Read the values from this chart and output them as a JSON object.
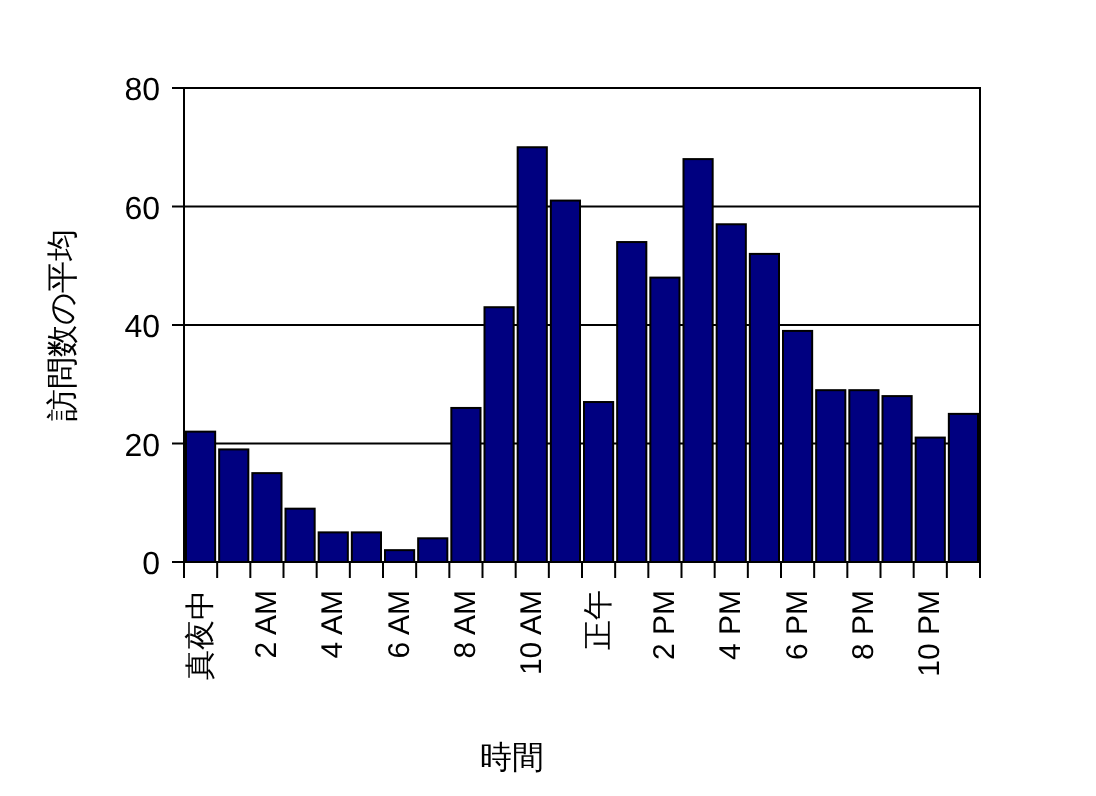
{
  "chart_data": {
    "type": "bar",
    "xlabel": "時間",
    "ylabel": "訪問数の平均",
    "categories": [
      "真夜中",
      null,
      "2 AM",
      null,
      "4 AM",
      null,
      "6 AM",
      null,
      "8 AM",
      null,
      "10 AM",
      null,
      "正午",
      null,
      "2 PM",
      null,
      "4 PM",
      null,
      "6 PM",
      null,
      "8 PM",
      null,
      "10 PM",
      null
    ],
    "values": [
      22,
      19,
      15,
      9,
      5,
      5,
      2,
      4,
      26,
      43,
      70,
      61,
      27,
      54,
      48,
      68,
      57,
      52,
      39,
      29,
      29,
      28,
      21,
      25
    ],
    "color": "#000080",
    "ylim": [
      0,
      80
    ],
    "yticks": [
      0,
      20,
      40,
      60,
      80
    ],
    "grid": "y"
  }
}
